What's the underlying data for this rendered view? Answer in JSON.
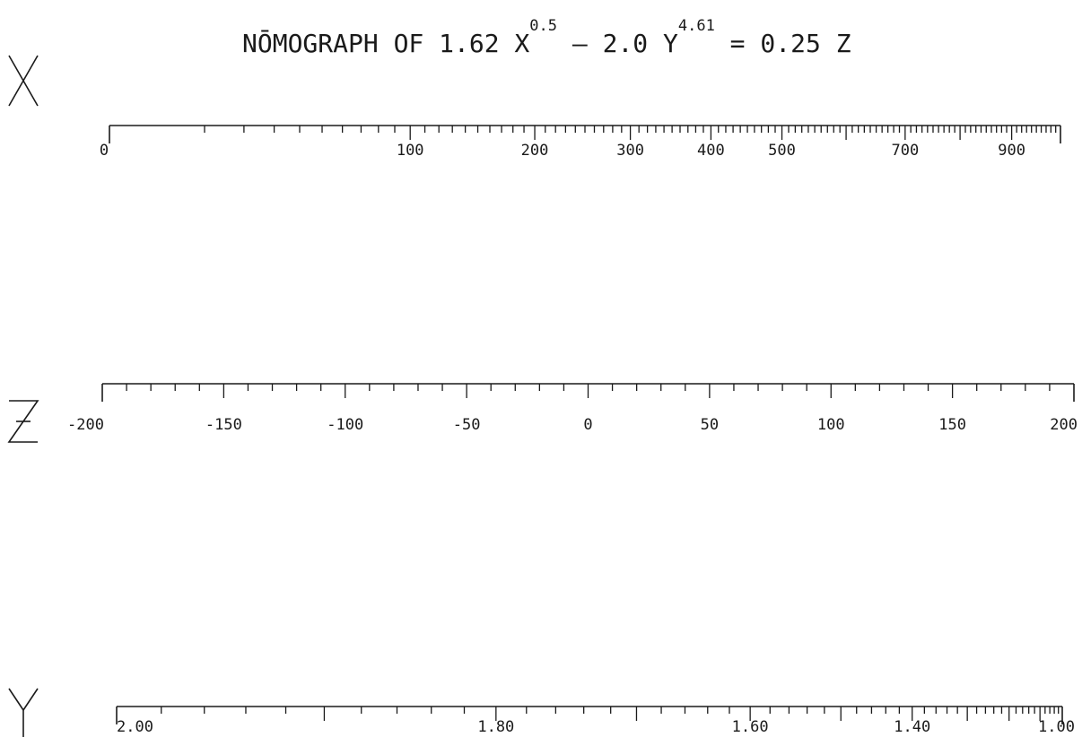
{
  "chart_data": {
    "type": "nomograph",
    "title": {
      "prefix": "NŌMOGRAPH OF 1.62 X",
      "x_exponent": "0.5",
      "middle": " – 2.0 Y",
      "y_exponent": "4.61",
      "suffix": " = 0.25 Z"
    },
    "axes": [
      {
        "id": "x",
        "name": "X",
        "scale": "sqrt",
        "range": [
          0,
          1000
        ],
        "labels": [
          {
            "value": 0,
            "text": "0"
          },
          {
            "value": 100,
            "text": "100"
          },
          {
            "value": 200,
            "text": "200"
          },
          {
            "value": 300,
            "text": "300"
          },
          {
            "value": 400,
            "text": "400"
          },
          {
            "value": 500,
            "text": "500"
          },
          {
            "value": 700,
            "text": "700"
          },
          {
            "value": 900,
            "text": "900"
          }
        ],
        "major_step": 100,
        "minor_step": 10
      },
      {
        "id": "z",
        "name": "Z",
        "scale": "linear",
        "range": [
          -200,
          200
        ],
        "labels": [
          {
            "value": -200,
            "text": "-200"
          },
          {
            "value": -150,
            "text": "-150"
          },
          {
            "value": -100,
            "text": "-100"
          },
          {
            "value": -50,
            "text": "-50"
          },
          {
            "value": 0,
            "text": "0"
          },
          {
            "value": 50,
            "text": "50"
          },
          {
            "value": 100,
            "text": "100"
          },
          {
            "value": 150,
            "text": "150"
          },
          {
            "value": 200,
            "text": "200"
          }
        ],
        "major_step": 50,
        "minor_step": 10
      },
      {
        "id": "y",
        "name": "Y",
        "scale": "power",
        "power": 4.61,
        "range": [
          2.0,
          1.0
        ],
        "labels": [
          {
            "value": 2.0,
            "text": "2.00"
          },
          {
            "value": 1.8,
            "text": "1.80"
          },
          {
            "value": 1.6,
            "text": "1.60"
          },
          {
            "value": 1.4,
            "text": "1.40"
          },
          {
            "value": 1.0,
            "text": "1.00"
          }
        ],
        "major_step": 0.1,
        "minor_step": 0.02
      }
    ]
  }
}
